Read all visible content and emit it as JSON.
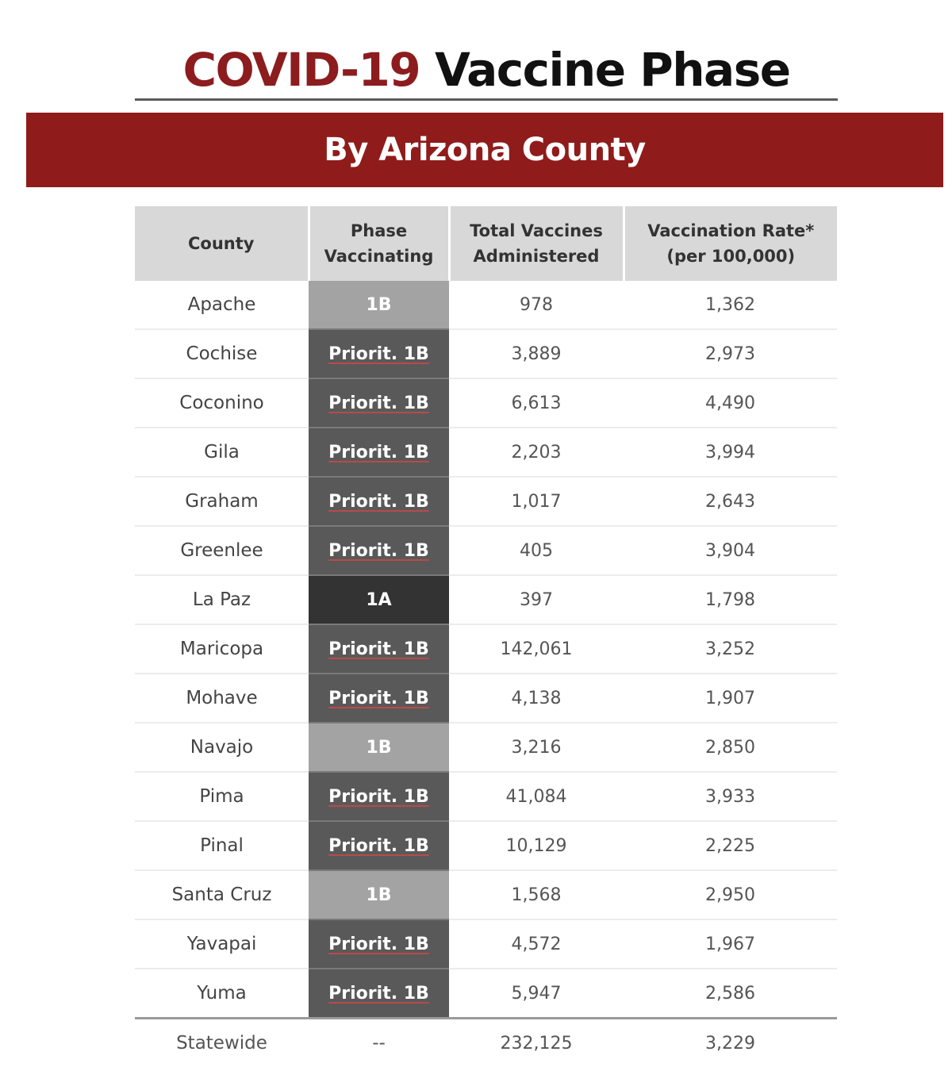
{
  "header": {
    "title_accent": "COVID-19",
    "title_rest": "Vaccine Phase",
    "banner": "By Arizona County"
  },
  "table": {
    "columns": [
      [
        "County"
      ],
      [
        "Phase",
        "Vaccinating"
      ],
      [
        "Total Vaccines",
        "Administered"
      ],
      [
        "Vaccination Rate*",
        "(per 100,000)"
      ]
    ],
    "rows": [
      {
        "county": "Apache",
        "phase": "1B",
        "phase_type": "1b",
        "total": "978",
        "rate": "1,362"
      },
      {
        "county": "Cochise",
        "phase": "Priorit. 1B",
        "phase_type": "prior",
        "total": "3,889",
        "rate": "2,973"
      },
      {
        "county": "Coconino",
        "phase": "Priorit. 1B",
        "phase_type": "prior",
        "total": "6,613",
        "rate": "4,490"
      },
      {
        "county": "Gila",
        "phase": "Priorit. 1B",
        "phase_type": "prior",
        "total": "2,203",
        "rate": "3,994"
      },
      {
        "county": "Graham",
        "phase": "Priorit. 1B",
        "phase_type": "prior",
        "total": "1,017",
        "rate": "2,643"
      },
      {
        "county": "Greenlee",
        "phase": "Priorit. 1B",
        "phase_type": "prior",
        "total": "405",
        "rate": "3,904"
      },
      {
        "county": "La Paz",
        "phase": "1A",
        "phase_type": "1a",
        "total": "397",
        "rate": "1,798"
      },
      {
        "county": "Maricopa",
        "phase": "Priorit. 1B",
        "phase_type": "prior",
        "total": "142,061",
        "rate": "3,252"
      },
      {
        "county": "Mohave",
        "phase": "Priorit. 1B",
        "phase_type": "prior",
        "total": "4,138",
        "rate": "1,907"
      },
      {
        "county": "Navajo",
        "phase": "1B",
        "phase_type": "1b",
        "total": "3,216",
        "rate": "2,850"
      },
      {
        "county": "Pima",
        "phase": "Priorit. 1B",
        "phase_type": "prior",
        "total": "41,084",
        "rate": "3,933"
      },
      {
        "county": "Pinal",
        "phase": "Priorit. 1B",
        "phase_type": "prior",
        "total": "10,129",
        "rate": "2,225"
      },
      {
        "county": "Santa Cruz",
        "phase": "1B",
        "phase_type": "1b",
        "total": "1,568",
        "rate": "2,950"
      },
      {
        "county": "Yavapai",
        "phase": "Priorit. 1B",
        "phase_type": "prior",
        "total": "4,572",
        "rate": "1,967"
      },
      {
        "county": "Yuma",
        "phase": "Priorit. 1B",
        "phase_type": "prior",
        "total": "5,947",
        "rate": "2,586"
      }
    ],
    "statewide": {
      "county": "Statewide",
      "phase": "--",
      "total": "232,125",
      "rate": "3,229"
    }
  },
  "colors": {
    "accent_red": "#8c1c1e",
    "banner_red": "#8f1c1b",
    "phase_prioritized": "#595959",
    "phase_1b": "#a3a3a3",
    "phase_1a": "#333333",
    "header_gray": "#d8d8d8"
  }
}
